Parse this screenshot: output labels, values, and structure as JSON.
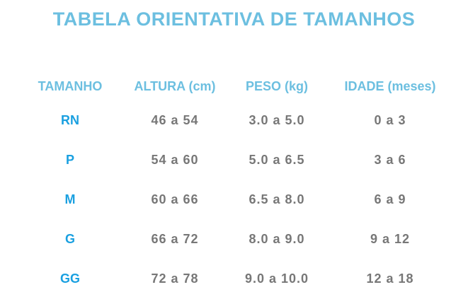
{
  "header": {
    "title": "TABELA ORIENTATIVA DE TAMANHOS"
  },
  "table": {
    "columns": [
      "TAMANHO",
      "ALTURA (cm)",
      "PESO (kg)",
      "IDADE (meses)"
    ],
    "rows": [
      [
        "RN",
        "46 a 54",
        "3.0 a 5.0",
        "0 a 3"
      ],
      [
        "P",
        "54 a 60",
        "5.0 a 6.5",
        "3 a 6"
      ],
      [
        "M",
        "60 a 66",
        "6.5 a 8.0",
        "6 a 9"
      ],
      [
        "G",
        "66 a 72",
        "8.0 a 9.0",
        "9 a 12"
      ],
      [
        "GG",
        "72 a 78",
        "9.0 a 10.0",
        "12 a 18"
      ]
    ]
  }
}
